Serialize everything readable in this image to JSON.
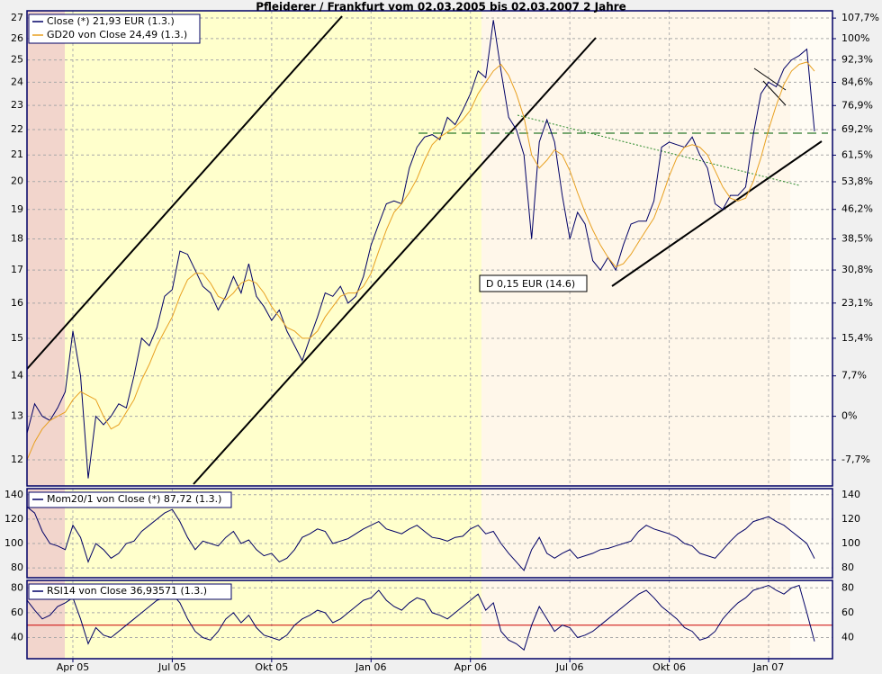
{
  "chart_data": [
    {
      "type": "line",
      "title": "Pfleiderer / Frankfurt vom 02.03.2005 bis 02.03.2007 2 Jahre",
      "log_scale": true,
      "grid": true,
      "ylim": [
        11.44,
        27.36
      ],
      "yticks": [
        12,
        13,
        14,
        15,
        16,
        17,
        18,
        19,
        20,
        21,
        22,
        23,
        24,
        25,
        26,
        27
      ],
      "y2lim": [
        -12,
        110.5
      ],
      "y2ticks": [
        {
          "value": -7.7,
          "label": "-7,7%"
        },
        {
          "value": 0,
          "label": "0%"
        },
        {
          "value": 7.7,
          "label": "7,7%"
        },
        {
          "value": 15.4,
          "label": "15,4%"
        },
        {
          "value": 23.1,
          "label": "23,1%"
        },
        {
          "value": 30.8,
          "label": "30,8%"
        },
        {
          "value": 38.5,
          "label": "38,5%"
        },
        {
          "value": 46.2,
          "label": "46,2%"
        },
        {
          "value": 53.8,
          "label": "53,8%"
        },
        {
          "value": 61.5,
          "label": "61,5%"
        },
        {
          "value": 69.2,
          "label": "69,2%"
        },
        {
          "value": 76.9,
          "label": "76,9%"
        },
        {
          "value": 84.6,
          "label": "84,6%"
        },
        {
          "value": 92.3,
          "label": "92,3%"
        },
        {
          "value": 100,
          "label": "100%"
        },
        {
          "value": 107.7,
          "label": "107,7%"
        }
      ],
      "annotation": "D 0,15 EUR (14.6)",
      "series": [
        {
          "name": "Close (*) 21,93 EUR (1.3.)",
          "color": "#000066",
          "values": [
            12.6,
            13.3,
            13.0,
            12.9,
            13.2,
            13.6,
            15.2,
            14.0,
            11.6,
            13.0,
            12.8,
            13.0,
            13.3,
            13.2,
            14.0,
            15.0,
            14.8,
            15.3,
            16.2,
            16.4,
            17.6,
            17.5,
            17.0,
            16.5,
            16.3,
            15.8,
            16.2,
            16.8,
            16.3,
            17.2,
            16.2,
            15.9,
            15.5,
            15.8,
            15.2,
            14.8,
            14.4,
            15.0,
            15.6,
            16.3,
            16.2,
            16.5,
            16.0,
            16.2,
            16.8,
            17.8,
            18.5,
            19.2,
            19.3,
            19.2,
            20.5,
            21.3,
            21.7,
            21.8,
            21.6,
            22.5,
            22.2,
            22.8,
            23.5,
            24.5,
            24.2,
            26.9,
            24.5,
            22.5,
            22.0,
            21.0,
            18.0,
            21.5,
            22.4,
            21.5,
            19.5,
            18.0,
            18.9,
            18.5,
            17.3,
            17.0,
            17.4,
            17.0,
            17.8,
            18.5,
            18.6,
            18.6,
            19.3,
            21.3,
            21.5,
            21.4,
            21.3,
            21.7,
            21.0,
            20.5,
            19.2,
            19.0,
            19.5,
            19.5,
            19.8,
            21.8,
            23.5,
            24.0,
            23.8,
            24.6,
            25.0,
            25.2,
            25.5,
            21.93
          ]
        },
        {
          "name": "GD20 von Close 24,49 (1.3.)",
          "color": "#e8a020",
          "values": [
            12.0,
            12.4,
            12.7,
            12.9,
            13.0,
            13.1,
            13.4,
            13.6,
            13.5,
            13.4,
            13.0,
            12.7,
            12.8,
            13.1,
            13.4,
            13.9,
            14.3,
            14.8,
            15.2,
            15.6,
            16.2,
            16.7,
            16.9,
            16.9,
            16.6,
            16.2,
            16.1,
            16.3,
            16.6,
            16.7,
            16.6,
            16.3,
            15.9,
            15.6,
            15.3,
            15.2,
            15.0,
            15.0,
            15.2,
            15.6,
            15.9,
            16.2,
            16.3,
            16.3,
            16.5,
            16.9,
            17.6,
            18.3,
            18.9,
            19.2,
            19.6,
            20.1,
            20.8,
            21.4,
            21.7,
            21.9,
            22.1,
            22.4,
            22.8,
            23.5,
            24.0,
            24.5,
            24.8,
            24.3,
            23.5,
            22.5,
            21.0,
            20.5,
            20.8,
            21.2,
            21.0,
            20.4,
            19.6,
            18.9,
            18.3,
            17.8,
            17.4,
            17.1,
            17.2,
            17.5,
            17.9,
            18.3,
            18.7,
            19.4,
            20.2,
            20.9,
            21.3,
            21.4,
            21.3,
            21.0,
            20.4,
            19.8,
            19.4,
            19.3,
            19.4,
            20.0,
            20.9,
            22.0,
            23.0,
            23.9,
            24.5,
            24.8,
            24.9,
            24.49
          ]
        }
      ]
    },
    {
      "type": "line",
      "grid": true,
      "ylim": [
        72,
        145
      ],
      "yticks": [
        80,
        100,
        120,
        140
      ],
      "series": [
        {
          "name": "Mom20/1 von Close (*) 87,72 (1.3.)",
          "color": "#000066",
          "values": [
            130,
            125,
            110,
            100,
            98,
            95,
            115,
            105,
            85,
            100,
            95,
            88,
            92,
            100,
            102,
            110,
            115,
            120,
            125,
            128,
            118,
            105,
            95,
            102,
            100,
            98,
            105,
            110,
            100,
            103,
            95,
            90,
            92,
            85,
            88,
            95,
            105,
            108,
            112,
            110,
            100,
            102,
            104,
            108,
            112,
            115,
            118,
            112,
            110,
            108,
            112,
            115,
            110,
            105,
            104,
            102,
            105,
            106,
            112,
            115,
            108,
            110,
            100,
            92,
            85,
            78,
            95,
            105,
            92,
            88,
            92,
            95,
            88,
            90,
            92,
            95,
            96,
            98,
            100,
            102,
            110,
            115,
            112,
            110,
            108,
            105,
            100,
            98,
            92,
            90,
            88,
            95,
            102,
            108,
            112,
            118,
            120,
            122,
            118,
            115,
            110,
            105,
            100,
            87.72
          ]
        }
      ]
    },
    {
      "type": "line",
      "grid": true,
      "ylim": [
        23,
        86
      ],
      "yticks": [
        40,
        60,
        80
      ],
      "reference_line": 50,
      "reference_color": "#cc0000",
      "categories": [
        null,
        null,
        null,
        null,
        null,
        null,
        "Apr 05",
        null,
        null,
        null,
        null,
        null,
        null,
        null,
        null,
        null,
        null,
        null,
        null,
        "Jul 05",
        null,
        null,
        null,
        null,
        null,
        null,
        null,
        null,
        null,
        null,
        null,
        null,
        "Okt 05",
        null,
        null,
        null,
        null,
        null,
        null,
        null,
        null,
        null,
        null,
        null,
        null,
        "Jan 06",
        null,
        null,
        null,
        null,
        null,
        null,
        null,
        null,
        null,
        null,
        null,
        null,
        "Apr 06",
        null,
        null,
        null,
        null,
        null,
        null,
        null,
        null,
        null,
        null,
        null,
        null,
        "Jul 06",
        null,
        null,
        null,
        null,
        null,
        null,
        null,
        null,
        null,
        null,
        null,
        null,
        "Okt 06",
        null,
        null,
        null,
        null,
        null,
        null,
        null,
        null,
        null,
        null,
        null,
        null,
        "Jan 07",
        null,
        null,
        null,
        null,
        null,
        null
      ],
      "series": [
        {
          "name": "RSI14 von Close 36,93571 (1.3.)",
          "color": "#000066",
          "values": [
            70,
            62,
            55,
            58,
            65,
            68,
            72,
            55,
            35,
            48,
            42,
            40,
            45,
            50,
            55,
            60,
            65,
            70,
            72,
            75,
            68,
            55,
            45,
            40,
            38,
            45,
            55,
            60,
            52,
            58,
            48,
            42,
            40,
            38,
            42,
            50,
            55,
            58,
            62,
            60,
            52,
            55,
            60,
            65,
            70,
            72,
            78,
            70,
            65,
            62,
            68,
            72,
            70,
            60,
            58,
            55,
            60,
            65,
            70,
            75,
            62,
            68,
            45,
            38,
            35,
            30,
            50,
            65,
            55,
            45,
            50,
            48,
            40,
            42,
            45,
            50,
            55,
            60,
            65,
            70,
            75,
            78,
            72,
            65,
            60,
            55,
            48,
            45,
            38,
            40,
            45,
            55,
            62,
            68,
            72,
            78,
            80,
            82,
            78,
            75,
            80,
            82,
            60,
            36.93571
          ]
        }
      ]
    }
  ]
}
